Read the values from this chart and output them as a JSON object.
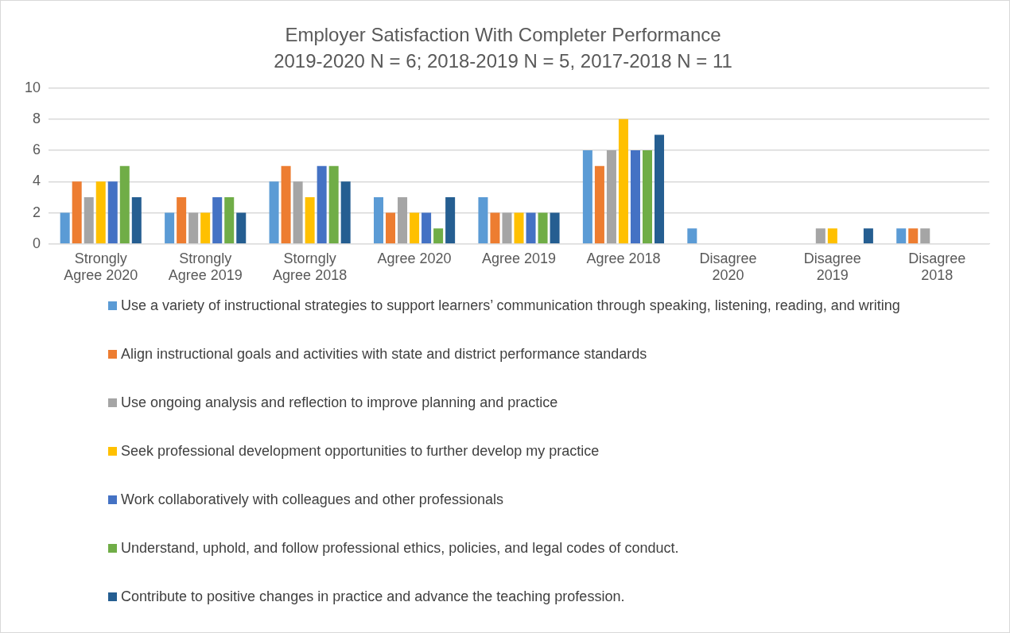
{
  "chart_data": {
    "type": "bar",
    "title": "Employer Satisfaction With Completer Performance",
    "subtitle": "2019-2020 N = 6; 2018-2019 N = 5, 2017-2018 N = 11",
    "categories": [
      "Strongly Agree 2020",
      "Strongly Agree 2019",
      "Storngly Agree 2018",
      "Agree 2020",
      "Agree 2019",
      "Agree 2018",
      "Disagree 2020",
      "Disagree 2019",
      "Disagree 2018"
    ],
    "series": [
      {
        "name": "Use a variety of instructional strategies to support learners’ communication through speaking, listening, reading, and writing",
        "color": "#5b9bd5",
        "values": [
          2,
          2,
          4,
          3,
          3,
          6,
          1,
          0,
          1
        ]
      },
      {
        "name": "Align instructional goals and activities with state and district performance standards",
        "color": "#ed7d31",
        "values": [
          4,
          3,
          5,
          2,
          2,
          5,
          0,
          0,
          1
        ]
      },
      {
        "name": "Use ongoing analysis and reflection to improve planning and practice",
        "color": "#a5a5a5",
        "values": [
          3,
          2,
          4,
          3,
          2,
          6,
          0,
          1,
          1
        ]
      },
      {
        "name": "Seek professional development opportunities to further develop my practice",
        "color": "#ffc000",
        "values": [
          4,
          2,
          3,
          2,
          2,
          8,
          0,
          1,
          0
        ]
      },
      {
        "name": "Work collaboratively with colleagues and other professionals",
        "color": "#4472c4",
        "values": [
          4,
          3,
          5,
          2,
          2,
          6,
          0,
          0,
          0
        ]
      },
      {
        "name": "Understand, uphold, and follow professional ethics, policies, and legal codes of conduct.",
        "color": "#70ad47",
        "values": [
          5,
          3,
          5,
          1,
          2,
          6,
          0,
          0,
          0
        ]
      },
      {
        "name": "Contribute to positive changes in practice and advance the teaching profession.",
        "color": "#255e91",
        "values": [
          3,
          2,
          4,
          3,
          2,
          7,
          0,
          1,
          0
        ]
      }
    ],
    "ylim": [
      0,
      10
    ],
    "yticks": [
      0,
      2,
      4,
      6,
      8,
      10
    ],
    "grid": "y",
    "legend": "bottom"
  }
}
